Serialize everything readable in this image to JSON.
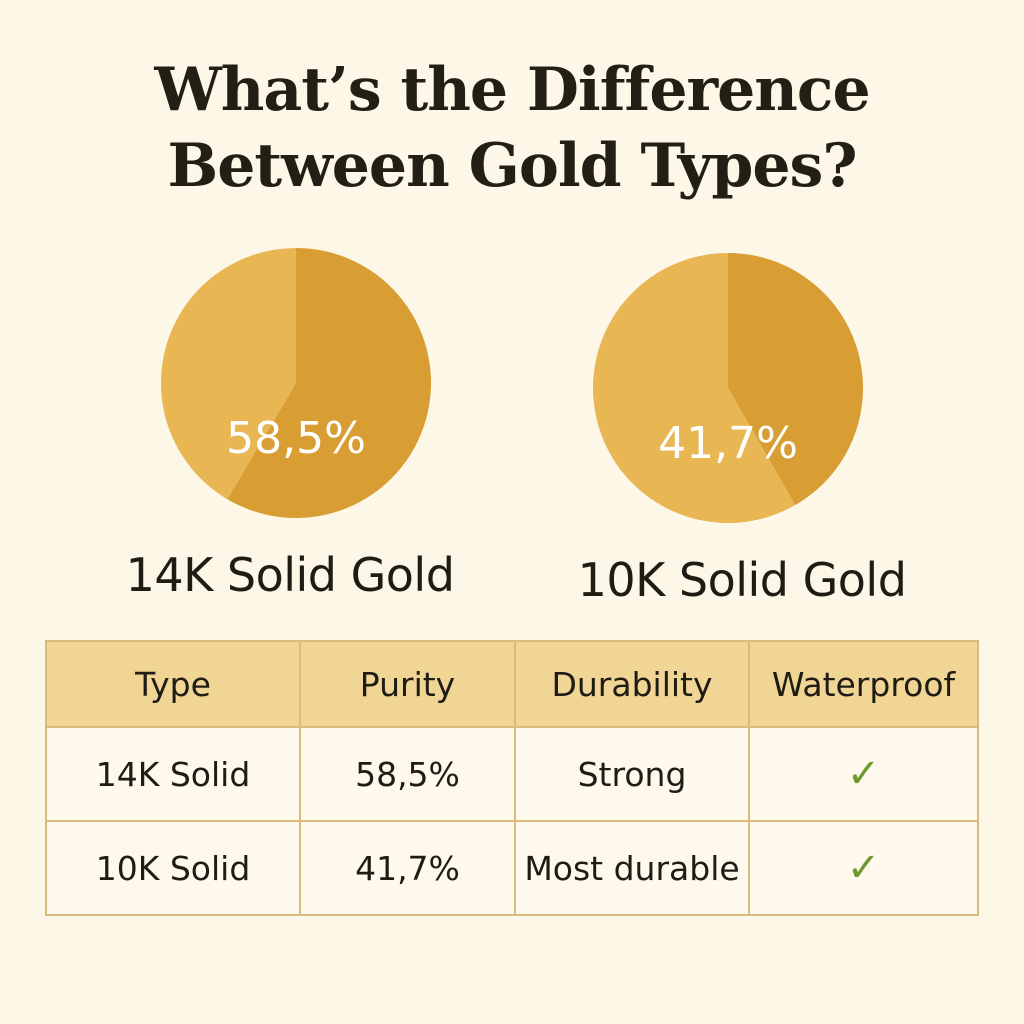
{
  "title_line1": "What’s the Difference",
  "title_line2": "Between Gold Types?",
  "colors": {
    "background": "#FDF7E8",
    "gold_dark": "#D89E33",
    "gold_light": "#E8B653",
    "header": "#F1D595",
    "check": "#6D9A2E"
  },
  "chart_data": [
    {
      "type": "pie",
      "title": "14K Solid Gold",
      "values": [
        58.5,
        41.5
      ],
      "data_label": "58,5%"
    },
    {
      "type": "pie",
      "title": "10K Solid Gold",
      "values": [
        41.7,
        58.3
      ],
      "data_label": "41,7%"
    }
  ],
  "table": {
    "type": "table",
    "headers": [
      "Type",
      "Purity",
      "Durability",
      "Waterproof"
    ],
    "rows": [
      [
        "14K Solid",
        "58,5%",
        "Strong",
        "✓"
      ],
      [
        "10K Solid",
        "41,7%",
        "Most durable",
        "✓"
      ]
    ]
  }
}
